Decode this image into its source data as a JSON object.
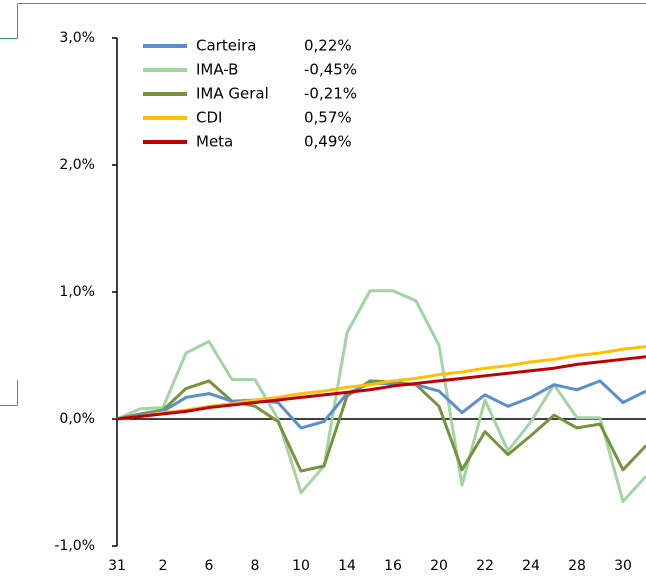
{
  "chart_data": {
    "type": "line",
    "categories": [
      "31",
      null,
      "2",
      null,
      "6",
      null,
      "8",
      null,
      "10",
      null,
      "14",
      null,
      "16",
      null,
      "20",
      null,
      "22",
      null,
      "24",
      null,
      "28",
      null,
      "30",
      null
    ],
    "series": [
      {
        "name": "IMA-B",
        "legend_value": "-0,45%",
        "color": "#a3d4a3",
        "values": [
          0,
          0.08,
          0.09,
          0.52,
          0.61,
          0.31,
          0.31,
          0.0,
          -0.58,
          -0.37,
          0.68,
          1.01,
          1.01,
          0.93,
          0.58,
          -0.52,
          0.15,
          -0.25,
          -0.02,
          0.27,
          0.01,
          0.01,
          -0.65,
          -0.45
        ]
      },
      {
        "name": "IMA Geral",
        "legend_value": "-0,21%",
        "color": "#77933c",
        "values": [
          0,
          0.04,
          0.07,
          0.24,
          0.3,
          0.14,
          0.1,
          -0.02,
          -0.41,
          -0.37,
          0.18,
          0.3,
          0.29,
          0.27,
          0.1,
          -0.4,
          -0.1,
          -0.28,
          -0.13,
          0.03,
          -0.07,
          -0.04,
          -0.4,
          -0.21
        ]
      },
      {
        "name": "Carteira",
        "legend_value": "0,22%",
        "color": "#5b8ecf",
        "values": [
          0,
          0.03,
          0.06,
          0.17,
          0.2,
          0.14,
          0.15,
          0.13,
          -0.07,
          -0.02,
          0.2,
          0.28,
          0.28,
          0.27,
          0.22,
          0.05,
          0.19,
          0.1,
          0.17,
          0.27,
          0.23,
          0.3,
          0.13,
          0.22
        ]
      },
      {
        "name": "CDI",
        "legend_value": "0,57%",
        "color": "#ffc000",
        "values": [
          0,
          0.02,
          0.05,
          0.07,
          0.1,
          0.12,
          0.15,
          0.17,
          0.2,
          0.22,
          0.25,
          0.27,
          0.3,
          0.32,
          0.35,
          0.37,
          0.4,
          0.42,
          0.45,
          0.47,
          0.5,
          0.52,
          0.55,
          0.57
        ]
      },
      {
        "name": "Meta",
        "legend_value": "0,49%",
        "color": "#c00000",
        "values": [
          0,
          0.02,
          0.04,
          0.06,
          0.09,
          0.11,
          0.13,
          0.15,
          0.17,
          0.19,
          0.21,
          0.23,
          0.26,
          0.28,
          0.3,
          0.32,
          0.34,
          0.36,
          0.38,
          0.4,
          0.43,
          0.45,
          0.47,
          0.49
        ]
      }
    ],
    "legend_order": [
      2,
      0,
      1,
      3,
      4
    ],
    "ylim": [
      -1,
      3
    ],
    "yticks": [
      {
        "value": -1,
        "label": "-1,0%"
      },
      {
        "value": 0,
        "label": "0,0%"
      },
      {
        "value": 1,
        "label": "1,0%"
      },
      {
        "value": 2,
        "label": "2,0%"
      },
      {
        "value": 3,
        "label": "3,0%"
      }
    ]
  }
}
